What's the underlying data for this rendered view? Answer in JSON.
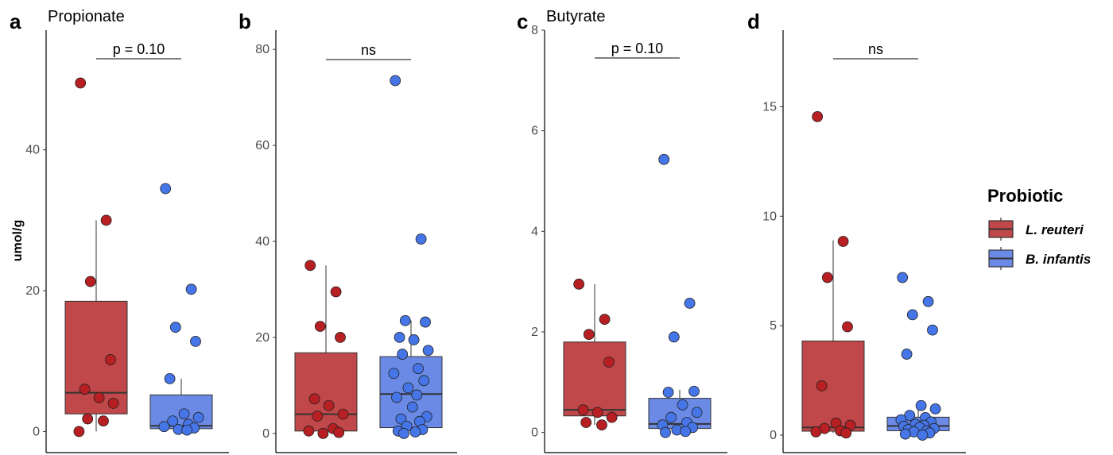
{
  "chart_data": [
    {
      "type": "box",
      "letter": "a",
      "title": "Propionate",
      "ylabel": "umol/g",
      "ylim": [
        -3,
        57
      ],
      "yticks": [
        0,
        20,
        40
      ],
      "significance": "p = 0.10",
      "series": [
        {
          "name": "L. reuteri",
          "box": {
            "q1": 2.5,
            "median": 5.5,
            "q3": 18.5,
            "whisker_low": 0,
            "whisker_high": 30
          },
          "points": [
            49.5,
            30,
            21.3,
            10.2,
            6,
            4.8,
            4,
            1.8,
            1.5,
            0
          ]
        },
        {
          "name": "B. infantis",
          "box": {
            "q1": 0.4,
            "median": 0.8,
            "q3": 5.2,
            "whisker_low": 0,
            "whisker_high": 7.5
          },
          "points": [
            34.5,
            20.2,
            14.8,
            12.8,
            7.5,
            2.5,
            2,
            1.5,
            1,
            0.7,
            0.5,
            0.3,
            0.2
          ]
        }
      ]
    },
    {
      "type": "box",
      "letter": "b",
      "title": "",
      "ylabel": "",
      "ylim": [
        -4,
        84
      ],
      "yticks": [
        0,
        20,
        40,
        60,
        80
      ],
      "significance": "ns",
      "series": [
        {
          "name": "L. reuteri",
          "box": {
            "q1": 0.5,
            "median": 4,
            "q3": 16.8,
            "whisker_low": 0,
            "whisker_high": 35
          },
          "points": [
            35,
            29.5,
            22.3,
            20,
            7.2,
            5.8,
            4,
            3.6,
            1,
            0.5,
            0.2,
            0
          ]
        },
        {
          "name": "B. infantis",
          "box": {
            "q1": 1.2,
            "median": 8.2,
            "q3": 16,
            "whisker_low": 0,
            "whisker_high": 23.5
          },
          "points": [
            73.5,
            40.5,
            23.5,
            23.2,
            20,
            19.5,
            17.3,
            16.5,
            13.5,
            12.5,
            11,
            9.5,
            8,
            7.5,
            5.5,
            3.5,
            3,
            2.5,
            1.5,
            0.8,
            0.5,
            0.3,
            0
          ]
        }
      ]
    },
    {
      "type": "box",
      "letter": "c",
      "title": "Butyrate",
      "ylabel": "",
      "ylim": [
        -0.4,
        8.0
      ],
      "yticks": [
        0,
        2,
        4,
        6,
        8
      ],
      "significance": "p = 0.10",
      "series": [
        {
          "name": "L. reuteri",
          "box": {
            "q1": 0.33,
            "median": 0.45,
            "q3": 1.8,
            "whisker_low": 0.15,
            "whisker_high": 2.95
          },
          "points": [
            2.95,
            2.25,
            1.95,
            1.4,
            0.45,
            0.4,
            0.3,
            0.2,
            0.15
          ]
        },
        {
          "name": "B. infantis",
          "box": {
            "q1": 0.08,
            "median": 0.17,
            "q3": 0.68,
            "whisker_low": 0,
            "whisker_high": 0.85
          },
          "points": [
            5.43,
            2.57,
            1.9,
            0.82,
            0.8,
            0.55,
            0.4,
            0.3,
            0.2,
            0.15,
            0.1,
            0.05,
            0.02,
            0
          ]
        }
      ]
    },
    {
      "type": "box",
      "letter": "d",
      "title": "",
      "ylabel": "",
      "ylim": [
        -0.8,
        18.5
      ],
      "yticks": [
        0,
        5,
        10,
        15
      ],
      "significance": "ns",
      "series": [
        {
          "name": "L. reuteri",
          "box": {
            "q1": 0.18,
            "median": 0.35,
            "q3": 4.3,
            "whisker_low": 0.1,
            "whisker_high": 8.9
          },
          "points": [
            14.55,
            8.85,
            7.2,
            4.95,
            2.25,
            0.55,
            0.45,
            0.3,
            0.2,
            0.15,
            0.1
          ]
        },
        {
          "name": "B. infantis",
          "box": {
            "q1": 0.2,
            "median": 0.42,
            "q3": 0.82,
            "whisker_low": 0,
            "whisker_high": 1.3
          },
          "points": [
            7.2,
            6.1,
            5.5,
            4.8,
            3.7,
            1.35,
            1.2,
            0.9,
            0.8,
            0.7,
            0.6,
            0.5,
            0.45,
            0.4,
            0.35,
            0.3,
            0.25,
            0.2,
            0.15,
            0.1,
            0.05,
            0
          ]
        }
      ]
    }
  ],
  "legend": {
    "title": "Probiotic",
    "items": [
      {
        "label": "L. reuteri",
        "fill": "#c0474a",
        "point": "#b81f22"
      },
      {
        "label": "B. infantis",
        "fill": "#6b8ae6",
        "point": "#4575e6"
      }
    ]
  },
  "colors": {
    "L. reuteri": {
      "box": "#c0474a",
      "point": "#b81f22"
    },
    "B. infantis": {
      "box": "#6b8ae6",
      "point": "#4575e6"
    }
  }
}
